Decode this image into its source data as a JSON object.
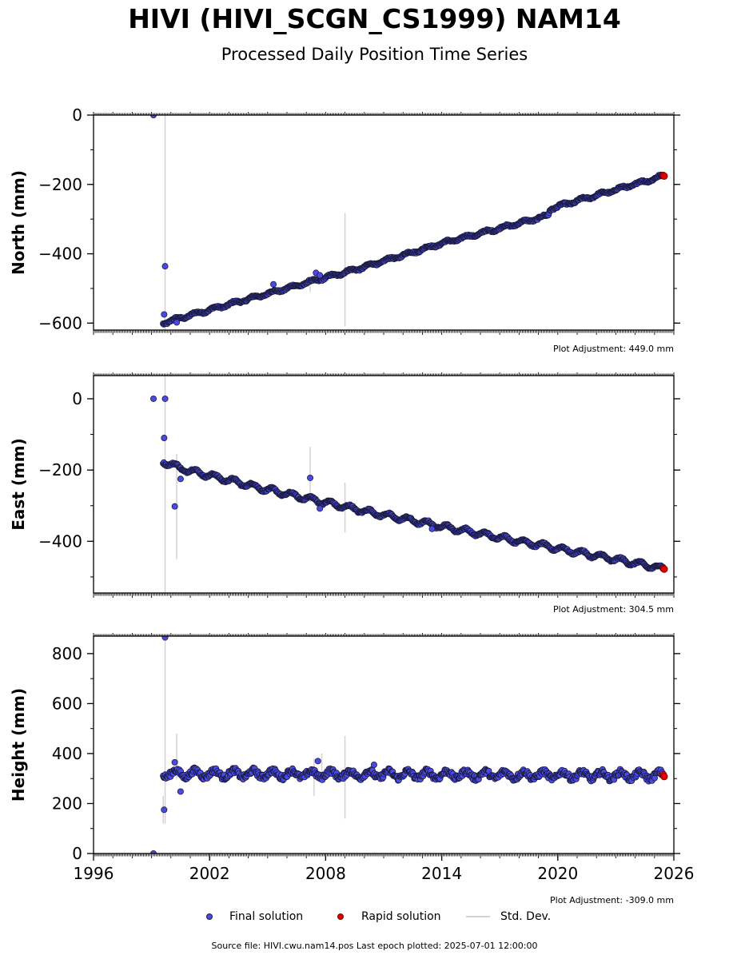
{
  "title": "HIVI (HIVI_SCGN_CS1999) NAM14",
  "subtitle": "Processed Daily Position Time Series",
  "source_text": "Source file: HIVI.cwu.nam14.pos  Last epoch plotted: 2025-07-01 12:00:00",
  "legend": {
    "final": "Final solution",
    "rapid": "Rapid solution",
    "stddev": "Std. Dev."
  },
  "colors": {
    "final_fill": "#4a4ae8",
    "final_edge": "#1a1a3a",
    "rapid": "#e00000",
    "stddev": "#d3d3d3"
  },
  "chart_data": [
    {
      "type": "scatter",
      "ylabel": "North (mm)",
      "adjustment": "Plot Adjustment: 449.0 mm",
      "xlim": [
        1996,
        2026
      ],
      "ylim": [
        -620,
        0
      ],
      "yticks": [
        0,
        -200,
        -400,
        -600
      ],
      "yticklabels": [
        "0",
        "−200",
        "−400",
        "−600"
      ],
      "trend": [
        [
          1999.6,
          -600
        ],
        [
          2000.5,
          -585
        ],
        [
          2005,
          -515
        ],
        [
          2010,
          -438
        ],
        [
          2014,
          -370
        ],
        [
          2019.5,
          -290
        ],
        [
          2019.6,
          -270
        ],
        [
          2025.5,
          -175
        ]
      ],
      "outliers": [
        [
          1999.1,
          0
        ],
        [
          1999.7,
          -436
        ],
        [
          1999.65,
          -575
        ],
        [
          2007.5,
          -455
        ],
        [
          2007.7,
          -462
        ],
        [
          2005.3,
          -488
        ],
        [
          2000.3,
          -598
        ]
      ],
      "errorbars": [
        [
          1999.7,
          0,
          -620
        ],
        [
          2009,
          -282,
          -610
        ],
        [
          2007.2,
          -475,
          -510
        ]
      ],
      "rapid": [
        [
          2025.45,
          -174
        ],
        [
          2025.5,
          -176
        ]
      ]
    },
    {
      "type": "scatter",
      "ylabel": "East (mm)",
      "adjustment": "Plot Adjustment: 304.5 mm",
      "xlim": [
        1996,
        2026
      ],
      "ylim": [
        -545,
        65
      ],
      "yticks": [
        0,
        -200,
        -400
      ],
      "yticklabels": [
        "0",
        "−200",
        "−400"
      ],
      "trend": [
        [
          1999.6,
          -175
        ],
        [
          2000.5,
          -195
        ],
        [
          2005,
          -255
        ],
        [
          2010,
          -315
        ],
        [
          2014,
          -358
        ],
        [
          2020,
          -420
        ],
        [
          2025.5,
          -477
        ]
      ],
      "outliers": [
        [
          1999.1,
          0
        ],
        [
          1999.7,
          0
        ],
        [
          1999.65,
          -110
        ],
        [
          2000.2,
          -302
        ],
        [
          2000.5,
          -225
        ],
        [
          2007.2,
          -222
        ],
        [
          2007.7,
          -308
        ],
        [
          2013.5,
          -365
        ]
      ],
      "errorbars": [
        [
          1999.7,
          65,
          -545
        ],
        [
          2000.3,
          -155,
          -450
        ],
        [
          2007.2,
          -135,
          -290
        ],
        [
          2009,
          -235,
          -375
        ]
      ],
      "rapid": [
        [
          2025.45,
          -476
        ],
        [
          2025.5,
          -478
        ]
      ]
    },
    {
      "type": "scatter",
      "ylabel": "Height (mm)",
      "adjustment": "Plot Adjustment: -309.0 mm",
      "xlim": [
        1996,
        2026
      ],
      "ylim": [
        0,
        870
      ],
      "yticks": [
        0,
        200,
        400,
        600,
        800
      ],
      "yticklabels": [
        "0",
        "200",
        "400",
        "600",
        "800"
      ],
      "xticks": [
        1996,
        2002,
        2008,
        2014,
        2020,
        2026
      ],
      "trend": [
        [
          1999.6,
          320
        ],
        [
          2025.5,
          312
        ]
      ],
      "outliers": [
        [
          1999.1,
          0
        ],
        [
          1999.7,
          865
        ],
        [
          1999.65,
          175
        ],
        [
          2000.2,
          365
        ],
        [
          2000.5,
          248
        ],
        [
          2007.6,
          370
        ],
        [
          2010.5,
          355
        ]
      ],
      "errorbars": [
        [
          1999.7,
          870,
          120
        ],
        [
          1999.6,
          230,
          120
        ],
        [
          2000.3,
          480,
          300
        ],
        [
          2007.4,
          380,
          230
        ],
        [
          2009,
          470,
          140
        ],
        [
          2007.8,
          400,
          290
        ]
      ],
      "rapid": [
        [
          2025.45,
          316
        ],
        [
          2025.5,
          308
        ]
      ]
    }
  ]
}
